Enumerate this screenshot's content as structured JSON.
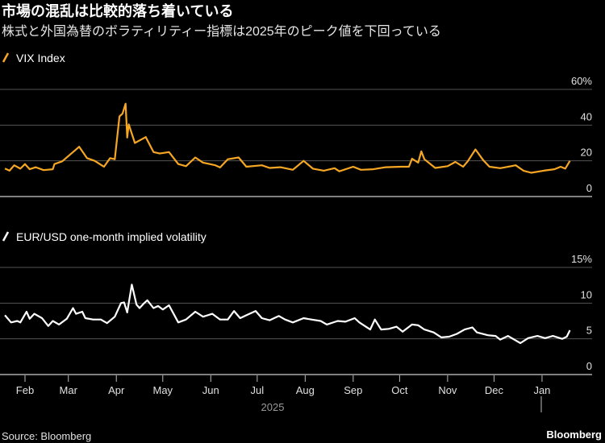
{
  "header": {
    "title": "市場の混乱は比較的落ち着いている",
    "subtitle": "株式と外国為替のボラティリティー指標は2025年のピーク値を下回っている"
  },
  "footer": {
    "source": "Source: Bloomberg",
    "brand": "Bloomberg"
  },
  "colors": {
    "background": "#000000",
    "vix": "#f5a623",
    "eurusd": "#ffffff",
    "grid": "#555555"
  },
  "chart_data": [
    {
      "type": "line",
      "legend": "VIX Index",
      "legend_icon": "slash-icon",
      "yticks": [
        "0",
        "20",
        "40",
        "60%"
      ],
      "ylim": [
        0,
        60
      ],
      "grid": true,
      "series": [
        {
          "name": "VIX Index",
          "color": "#f5a623",
          "points": [
            [
              "2025-01-19",
              15.7
            ],
            [
              "2025-01-22",
              14.5
            ],
            [
              "2025-01-25",
              17.5
            ],
            [
              "2025-01-29",
              15.6
            ],
            [
              "2025-02-01",
              18.2
            ],
            [
              "2025-02-04",
              15.3
            ],
            [
              "2025-02-08",
              16.4
            ],
            [
              "2025-02-13",
              14.8
            ],
            [
              "2025-02-19",
              15.3
            ],
            [
              "2025-02-20",
              18.2
            ],
            [
              "2025-02-25",
              19.7
            ],
            [
              "2025-03-02",
              23.4
            ],
            [
              "2025-03-08",
              27.9
            ],
            [
              "2025-03-13",
              21.5
            ],
            [
              "2025-03-18",
              20.0
            ],
            [
              "2025-03-24",
              16.7
            ],
            [
              "2025-03-28",
              21.5
            ],
            [
              "2025-03-31",
              20.9
            ],
            [
              "2025-04-03",
              44.9
            ],
            [
              "2025-04-05",
              46.4
            ],
            [
              "2025-04-07",
              52.0
            ],
            [
              "2025-04-08",
              33.0
            ],
            [
              "2025-04-09",
              40.4
            ],
            [
              "2025-04-13",
              30.0
            ],
            [
              "2025-04-20",
              33.3
            ],
            [
              "2025-04-25",
              24.9
            ],
            [
              "2025-04-29",
              24.1
            ],
            [
              "2025-05-05",
              24.9
            ],
            [
              "2025-05-11",
              18.2
            ],
            [
              "2025-05-16",
              17.0
            ],
            [
              "2025-05-22",
              21.9
            ],
            [
              "2025-05-27",
              19.0
            ],
            [
              "2025-06-04",
              17.5
            ],
            [
              "2025-06-07",
              16.3
            ],
            [
              "2025-06-12",
              20.9
            ],
            [
              "2025-06-19",
              21.9
            ],
            [
              "2025-06-24",
              16.7
            ],
            [
              "2025-07-04",
              17.5
            ],
            [
              "2025-07-09",
              16.0
            ],
            [
              "2025-07-16",
              16.4
            ],
            [
              "2025-07-24",
              15.0
            ],
            [
              "2025-07-31",
              20.0
            ],
            [
              "2025-08-06",
              15.6
            ],
            [
              "2025-08-13",
              14.5
            ],
            [
              "2025-08-20",
              15.9
            ],
            [
              "2025-08-23",
              14.1
            ],
            [
              "2025-09-01",
              16.7
            ],
            [
              "2025-09-06",
              15.0
            ],
            [
              "2025-09-14",
              15.3
            ],
            [
              "2025-09-22",
              16.4
            ],
            [
              "2025-10-02",
              16.7
            ],
            [
              "2025-10-07",
              16.7
            ],
            [
              "2025-10-09",
              21.2
            ],
            [
              "2025-10-13",
              19.0
            ],
            [
              "2025-10-15",
              25.3
            ],
            [
              "2025-10-17",
              20.9
            ],
            [
              "2025-10-24",
              16.0
            ],
            [
              "2025-11-01",
              17.0
            ],
            [
              "2025-11-06",
              19.4
            ],
            [
              "2025-11-11",
              16.7
            ],
            [
              "2025-11-14",
              19.7
            ],
            [
              "2025-11-19",
              26.4
            ],
            [
              "2025-11-24",
              20.4
            ],
            [
              "2025-11-28",
              16.7
            ],
            [
              "2025-12-05",
              15.9
            ],
            [
              "2025-12-15",
              17.5
            ],
            [
              "2025-12-20",
              14.5
            ],
            [
              "2025-12-25",
              13.3
            ],
            [
              "2026-01-02",
              14.5
            ],
            [
              "2026-01-09",
              15.3
            ],
            [
              "2026-01-13",
              16.7
            ],
            [
              "2026-01-16",
              15.6
            ],
            [
              "2026-01-19",
              20.0
            ]
          ]
        }
      ]
    },
    {
      "type": "line",
      "legend": "EUR/USD one-month implied volatility",
      "legend_icon": "slash-icon",
      "yticks": [
        "0",
        "5",
        "10",
        "15%"
      ],
      "ylim": [
        0,
        15
      ],
      "grid": true,
      "series": [
        {
          "name": "EUR/USD one-month implied volatility",
          "color": "#ffffff",
          "points": [
            [
              "2025-01-19",
              8.3
            ],
            [
              "2025-01-23",
              7.3
            ],
            [
              "2025-01-27",
              7.5
            ],
            [
              "2025-01-29",
              7.3
            ],
            [
              "2025-02-02",
              8.8
            ],
            [
              "2025-02-04",
              7.8
            ],
            [
              "2025-02-07",
              8.5
            ],
            [
              "2025-02-12",
              7.9
            ],
            [
              "2025-02-16",
              6.8
            ],
            [
              "2025-02-19",
              7.5
            ],
            [
              "2025-02-23",
              7.0
            ],
            [
              "2025-02-28",
              7.8
            ],
            [
              "2025-03-04",
              9.3
            ],
            [
              "2025-03-06",
              8.5
            ],
            [
              "2025-03-10",
              8.8
            ],
            [
              "2025-03-12",
              7.9
            ],
            [
              "2025-03-17",
              7.7
            ],
            [
              "2025-03-22",
              7.7
            ],
            [
              "2025-03-26",
              7.2
            ],
            [
              "2025-03-31",
              8.1
            ],
            [
              "2025-04-04",
              10.0
            ],
            [
              "2025-04-06",
              10.1
            ],
            [
              "2025-04-08",
              8.7
            ],
            [
              "2025-04-11",
              12.6
            ],
            [
              "2025-04-14",
              9.8
            ],
            [
              "2025-04-16",
              9.3
            ],
            [
              "2025-04-19",
              10.0
            ],
            [
              "2025-04-21",
              10.4
            ],
            [
              "2025-04-25",
              9.3
            ],
            [
              "2025-04-28",
              9.6
            ],
            [
              "2025-05-01",
              9.1
            ],
            [
              "2025-05-05",
              9.7
            ],
            [
              "2025-05-11",
              7.3
            ],
            [
              "2025-05-16",
              7.7
            ],
            [
              "2025-05-22",
              8.8
            ],
            [
              "2025-05-27",
              8.1
            ],
            [
              "2025-06-02",
              8.5
            ],
            [
              "2025-06-07",
              7.7
            ],
            [
              "2025-06-12",
              7.7
            ],
            [
              "2025-06-16",
              8.9
            ],
            [
              "2025-06-20",
              7.9
            ],
            [
              "2025-06-25",
              8.4
            ],
            [
              "2025-06-30",
              8.9
            ],
            [
              "2025-07-04",
              7.9
            ],
            [
              "2025-07-09",
              7.6
            ],
            [
              "2025-07-15",
              8.2
            ],
            [
              "2025-07-19",
              7.7
            ],
            [
              "2025-07-24",
              7.3
            ],
            [
              "2025-07-31",
              7.9
            ],
            [
              "2025-08-05",
              7.7
            ],
            [
              "2025-08-11",
              7.5
            ],
            [
              "2025-08-15",
              7.0
            ],
            [
              "2025-08-22",
              7.5
            ],
            [
              "2025-08-27",
              7.4
            ],
            [
              "2025-09-02",
              7.9
            ],
            [
              "2025-09-05",
              7.3
            ],
            [
              "2025-09-12",
              6.3
            ],
            [
              "2025-09-15",
              7.7
            ],
            [
              "2025-09-19",
              6.3
            ],
            [
              "2025-09-24",
              6.4
            ],
            [
              "2025-09-29",
              6.7
            ],
            [
              "2025-10-03",
              6.0
            ],
            [
              "2025-10-09",
              7.0
            ],
            [
              "2025-10-13",
              6.9
            ],
            [
              "2025-10-17",
              6.3
            ],
            [
              "2025-10-23",
              5.9
            ],
            [
              "2025-10-28",
              5.2
            ],
            [
              "2025-11-02",
              5.3
            ],
            [
              "2025-11-07",
              5.7
            ],
            [
              "2025-11-12",
              6.3
            ],
            [
              "2025-11-17",
              6.6
            ],
            [
              "2025-11-20",
              5.9
            ],
            [
              "2025-11-27",
              5.5
            ],
            [
              "2025-12-02",
              5.4
            ],
            [
              "2025-12-05",
              4.9
            ],
            [
              "2025-12-10",
              5.4
            ],
            [
              "2025-12-14",
              4.9
            ],
            [
              "2025-12-18",
              4.4
            ],
            [
              "2025-12-23",
              5.1
            ],
            [
              "2025-12-29",
              5.4
            ],
            [
              "2026-01-03",
              5.1
            ],
            [
              "2026-01-08",
              5.4
            ],
            [
              "2026-01-14",
              5.0
            ],
            [
              "2026-01-17",
              5.3
            ],
            [
              "2026-01-19",
              6.2
            ]
          ]
        }
      ]
    }
  ],
  "xaxis": {
    "months": [
      "Feb",
      "Mar",
      "Apr",
      "May",
      "Jun",
      "Jul",
      "Aug",
      "Sep",
      "Oct",
      "Nov",
      "Dec",
      "Jan"
    ],
    "year_label": "2025"
  }
}
